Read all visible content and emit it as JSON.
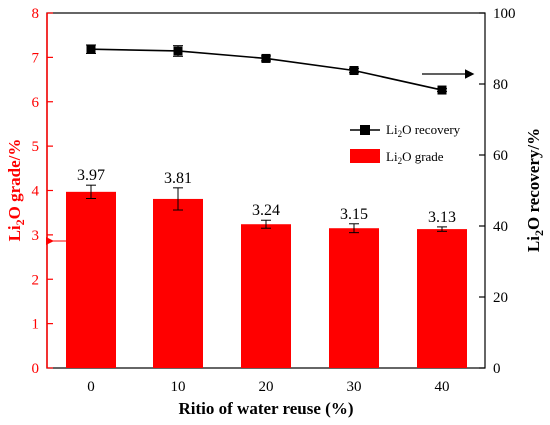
{
  "chart_data": {
    "type": "bar",
    "title": "",
    "xlabel": "Ritio of water reuse (%)",
    "categories": [
      "0",
      "10",
      "20",
      "30",
      "40"
    ],
    "y_left": {
      "label_main": "Li",
      "label_sub": "2",
      "label_rest": "O grade/%",
      "range": [
        0,
        8
      ],
      "ticks": [
        "0",
        "1",
        "2",
        "3",
        "4",
        "5",
        "6",
        "7",
        "8"
      ],
      "color": "#ff0000"
    },
    "y_right": {
      "label_main": "Li",
      "label_sub": "2",
      "label_rest": "O recovery/%",
      "range": [
        0,
        100
      ],
      "ticks": [
        "0",
        "20",
        "40",
        "60",
        "80",
        "100"
      ],
      "color": "#000000"
    },
    "series": [
      {
        "name_main": "Li",
        "name_sub": "2",
        "name_rest": "O grade",
        "type": "bar",
        "axis": "left",
        "color": "#ff0000",
        "values": [
          3.97,
          3.81,
          3.24,
          3.15,
          3.13
        ],
        "labels": [
          "3.97",
          "3.81",
          "3.24",
          "3.15",
          "3.13"
        ],
        "errors": [
          0.15,
          0.25,
          0.09,
          0.1,
          0.05
        ]
      },
      {
        "name_main": "Li",
        "name_sub": "2",
        "name_rest": "O recovery",
        "type": "line",
        "axis": "right",
        "color": "#000000",
        "marker": "square",
        "values": [
          89.8,
          89.3,
          87.2,
          83.8,
          78.3
        ],
        "errors": [
          1.2,
          1.5,
          0.7,
          0.6,
          0.4
        ]
      }
    ],
    "legend_position": "center-right",
    "grid": false
  }
}
